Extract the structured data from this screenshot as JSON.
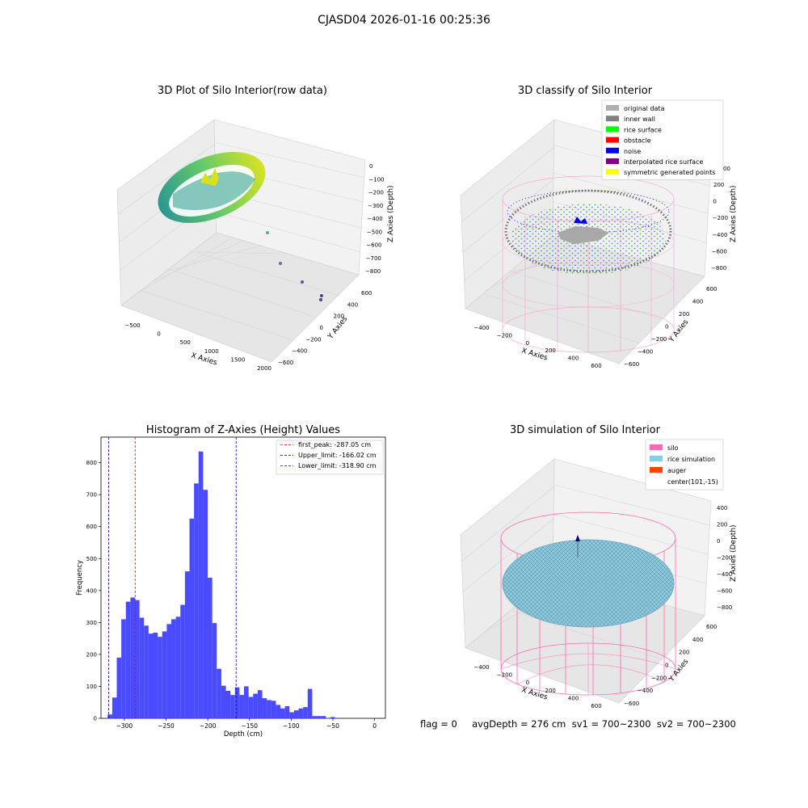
{
  "figure_title": "CJASD04 2026-01-16 00:25:36",
  "status_line": "flag = 0     avgDepth = 276 cm  sv1 = 700~2300  sv2 = 700~2300",
  "colors": {
    "histogram_bar": "#4a4aff",
    "first_peak": "#ff0000",
    "limit_line": "#0000bb",
    "silo": "#ff69b4",
    "rice_simulation": "#87ceeb",
    "auger": "#ff4500",
    "original_data": "#b0b0b0",
    "inner_wall": "#808080",
    "rice_surface": "#00ff00",
    "obstacle": "#ff0000",
    "noise": "#0000ff",
    "interpolated_rice_surface": "#800080",
    "symmetric_generated_points": "#ffff00"
  },
  "chart_data": [
    {
      "type": "scatter",
      "projection": "3d",
      "title": "3D Plot of Silo Interior(row data)",
      "xlabel": "X Axies",
      "ylabel": "Y Axies",
      "zlabel": "Z Axies (Depth)",
      "x_ticks": [
        "−500",
        "0",
        "500",
        "1000",
        "1500",
        "2000"
      ],
      "y_ticks": [
        "−600",
        "−400",
        "−200",
        "0",
        "200",
        "400",
        "600"
      ],
      "z_ticks": [
        "0",
        "−100",
        "−200",
        "−300",
        "−400",
        "−500",
        "−600",
        "−700",
        "−800"
      ],
      "colormap": "viridis"
    },
    {
      "type": "scatter",
      "projection": "3d",
      "title": "3D classify of Silo Interior",
      "xlabel": "X Axies",
      "ylabel": "Y Axies",
      "zlabel": "Z Axies (Depth)",
      "x_ticks": [
        "−400",
        "−200",
        "0",
        "200",
        "400",
        "600"
      ],
      "y_ticks": [
        "−600",
        "−400",
        "−200",
        "0",
        "200",
        "400",
        "600"
      ],
      "z_ticks": [
        "200",
        "0",
        "−200",
        "−400",
        "−600",
        "−800"
      ],
      "z_top_tick_partial": "00",
      "legend": [
        {
          "label": "original data",
          "color": "#b0b0b0"
        },
        {
          "label": "inner wall",
          "color": "#808080"
        },
        {
          "label": "rice surface",
          "color": "#00ff00"
        },
        {
          "label": "obstacle",
          "color": "#ff0000"
        },
        {
          "label": "noise",
          "color": "#0000ff"
        },
        {
          "label": "interpolated rice surface",
          "color": "#800080"
        },
        {
          "label": "symmetric generated points",
          "color": "#ffff00"
        }
      ],
      "legend_position": "top-right"
    },
    {
      "type": "bar",
      "title": "Histogram of Z-Axies (Height) Values",
      "xlabel": "Depth (cm)",
      "ylabel": "Frequency",
      "xlim": [
        -328,
        13
      ],
      "ylim": [
        0,
        880
      ],
      "x_ticks": [
        -300,
        -250,
        -200,
        -150,
        -100,
        -50,
        0
      ],
      "x_tick_labels": [
        "−300",
        "−250",
        "−200",
        "−150",
        "−100",
        "−50",
        "0"
      ],
      "y_ticks": [
        0,
        100,
        200,
        300,
        400,
        500,
        600,
        700,
        800
      ],
      "bin_start": -320,
      "bin_width": 5.45,
      "values": [
        12,
        65,
        190,
        310,
        365,
        378,
        370,
        315,
        290,
        265,
        268,
        255,
        272,
        295,
        310,
        318,
        355,
        460,
        625,
        735,
        835,
        715,
        440,
        298,
        155,
        102,
        86,
        73,
        97,
        73,
        100,
        67,
        77,
        88,
        63,
        57,
        55,
        42,
        31,
        38,
        19,
        25,
        31,
        35,
        92,
        7,
        7,
        7,
        0,
        4
      ],
      "lines": [
        {
          "label": "first_peak: -287.05 cm",
          "x": -287.05,
          "color": "#ff0000"
        },
        {
          "label": "Upper_limit: -166.02 cm",
          "x": -166.02,
          "color": "#0000bb"
        },
        {
          "label": "Lower_limit: -318.90 cm",
          "x": -318.9,
          "color": "#0000bb"
        }
      ],
      "legend_position": "top-right"
    },
    {
      "type": "scatter",
      "projection": "3d",
      "title": "3D simulation of Silo Interior",
      "xlabel": "X Axies",
      "ylabel": "Y Axies",
      "zlabel": "Z Axies (Depth)",
      "x_ticks": [
        "−400",
        "−200",
        "0",
        "200",
        "400",
        "600"
      ],
      "y_ticks": [
        "−600",
        "−400",
        "−200",
        "0",
        "200",
        "400",
        "600"
      ],
      "z_ticks": [
        "400",
        "200",
        "0",
        "−200",
        "−400",
        "−600",
        "−800"
      ],
      "legend": [
        {
          "label": "silo",
          "color": "#ff69b4"
        },
        {
          "label": "rice simulation",
          "color": "#87ceeb"
        },
        {
          "label": "auger",
          "color": "#ff4500"
        },
        {
          "label": "center(101,-15)",
          "color": ""
        }
      ],
      "legend_position": "top-right"
    }
  ]
}
